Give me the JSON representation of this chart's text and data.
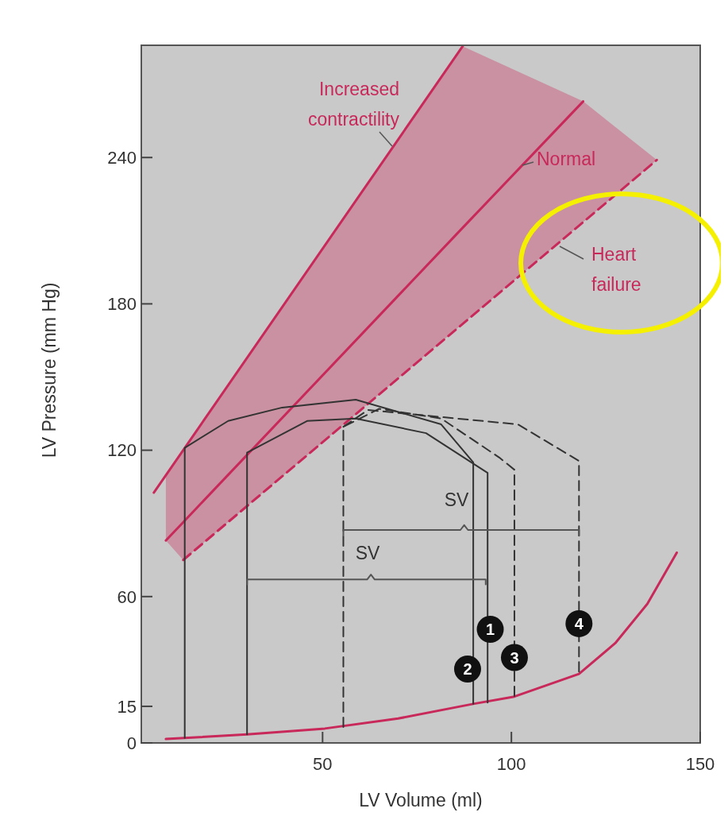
{
  "chart_data": {
    "type": "line",
    "xlabel": "LV Volume (ml)",
    "ylabel": "LV Pressure (mm Hg)",
    "xlim": [
      2,
      150
    ],
    "xticks": [
      50,
      100,
      150
    ],
    "ylim": [
      0,
      286
    ],
    "yticks": [
      0,
      15,
      60,
      120,
      180,
      240
    ],
    "grid": false,
    "series": [
      {
        "name": "Increased contractility",
        "color": "#c8285a",
        "x": [
          5.3,
          87.1
        ],
        "values": [
          102.6,
          285.6
        ]
      },
      {
        "name": "Normal",
        "color": "#c8285a",
        "x": [
          8.5,
          13.1,
          87.1,
          119,
          138.5
        ],
        "values": [
          83,
          90.5,
          211.2,
          263,
          null
        ],
        "lower": [
          83,
          75,
          171.8,
          213.5,
          239
        ],
        "upper": [
          109.8,
          120.1,
          285.6,
          263,
          239
        ]
      },
      {
        "name": "Heart failure",
        "color": "#c8285a",
        "line_style": "dashed",
        "x": [
          13.1,
          138.5
        ],
        "values": [
          75,
          239
        ]
      },
      {
        "color": "#c8285a",
        "x": [
          8.5,
          30,
          50.6,
          70,
          89.9,
          100.8,
          117.9,
          127.5,
          136,
          143.8
        ],
        "values": [
          1.6,
          3.5,
          5.9,
          10,
          16,
          19,
          28.3,
          40.9,
          57,
          78
        ]
      },
      {
        "color": "#333333",
        "x": [
          13.5,
          13.5,
          25,
          39.3,
          58.8,
          81.4,
          89.9,
          89.9
        ],
        "values": [
          2,
          121,
          132,
          137.5,
          140.7,
          130.6,
          115,
          16
        ]
      },
      {
        "color": "#333333",
        "x": [
          30,
          30,
          45.9,
          58.8,
          77.4,
          93.7,
          93.7
        ],
        "values": [
          3.5,
          119,
          132,
          133,
          127,
          110.7,
          16.5
        ]
      },
      {
        "color": "#333333",
        "line_style": "dashed",
        "x": [
          55.5,
          55.5,
          65,
          81.4,
          96.8,
          100.8,
          100.8
        ],
        "values": [
          6.5,
          129.6,
          137,
          133,
          117,
          112,
          18.6
        ]
      },
      {
        "color": "#333333",
        "line_style": "dashed",
        "x": [
          55.5,
          62,
          101.7,
          117.9,
          117.9
        ],
        "values": [
          129.6,
          136.5,
          130.6,
          115.6,
          28.3
        ]
      },
      {
        "color": "#555555",
        "x": [
          30,
          30,
          61.8,
          62.8,
          63.8,
          93.2,
          93.2
        ],
        "values": [
          65,
          67,
          67,
          69,
          67,
          67,
          65
        ]
      },
      {
        "color": "#555555",
        "x": [
          55.5,
          55.5,
          86.5,
          87.5,
          88.5,
          117.9,
          117.9
        ],
        "values": [
          85,
          87.3,
          87.3,
          89.3,
          87.3,
          87.3,
          85
        ]
      }
    ],
    "annotations": [
      "SV",
      "SV",
      {
        "text": "1",
        "x": 94.4,
        "y": 46.6
      },
      {
        "text": "2",
        "x": 88.4,
        "y": 30.3
      },
      {
        "text": "3",
        "x": 100.8,
        "y": 35
      },
      {
        "text": "4",
        "x": 117.9,
        "y": 48.9
      }
    ]
  }
}
